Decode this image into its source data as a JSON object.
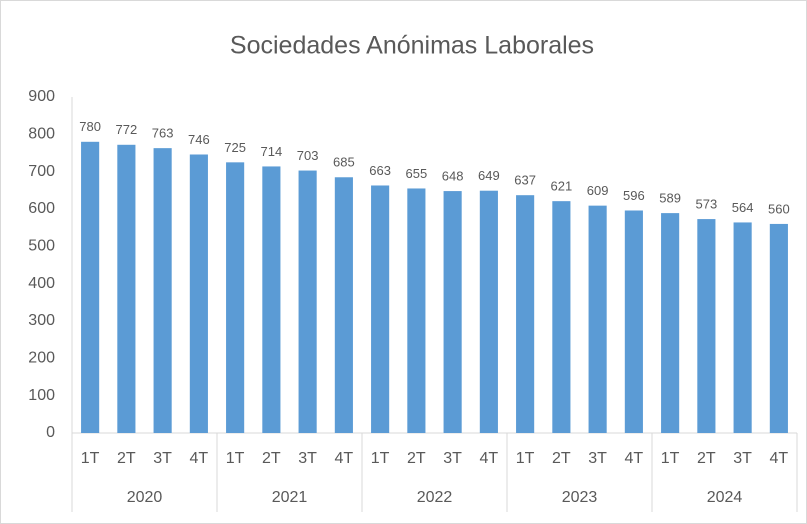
{
  "chart_data": {
    "type": "bar",
    "title": "Sociedades Anónimas Laborales",
    "categories": [
      "1T",
      "2T",
      "3T",
      "4T",
      "1T",
      "2T",
      "3T",
      "4T",
      "1T",
      "2T",
      "3T",
      "4T",
      "1T",
      "2T",
      "3T",
      "4T",
      "1T",
      "2T",
      "3T",
      "4T"
    ],
    "groups": [
      "2020",
      "2021",
      "2022",
      "2023",
      "2024"
    ],
    "values": [
      780,
      772,
      763,
      746,
      725,
      714,
      703,
      685,
      663,
      655,
      648,
      649,
      637,
      621,
      609,
      596,
      589,
      573,
      564,
      560
    ],
    "color": "#5b9bd5",
    "ylim": [
      0,
      900
    ],
    "yticks": [
      0,
      100,
      200,
      300,
      400,
      500,
      600,
      700,
      800,
      900
    ],
    "grid": false
  }
}
